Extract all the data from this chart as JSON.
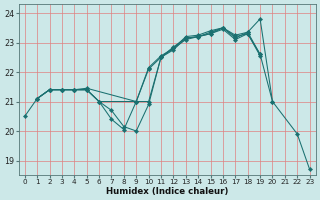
{
  "xlabel": "Humidex (Indice chaleur)",
  "xlim": [
    -0.5,
    23.5
  ],
  "ylim": [
    18.5,
    24.3
  ],
  "yticks": [
    19,
    20,
    21,
    22,
    23,
    24
  ],
  "xticks": [
    0,
    1,
    2,
    3,
    4,
    5,
    6,
    7,
    8,
    9,
    10,
    11,
    12,
    13,
    14,
    15,
    16,
    17,
    18,
    19,
    20,
    21,
    22,
    23
  ],
  "bg_color": "#cce8e8",
  "line_color": "#1a7070",
  "grid_major_color": "#e08080",
  "grid_minor_color": "#f0b0b0",
  "lines": [
    [
      [
        0,
        20.5
      ],
      [
        1,
        21.1
      ],
      [
        2,
        21.4
      ],
      [
        3,
        21.4
      ],
      [
        4,
        21.4
      ],
      [
        5,
        21.4
      ],
      [
        6,
        21.0
      ],
      [
        7,
        20.7
      ],
      [
        8,
        20.15
      ],
      [
        9,
        20.0
      ],
      [
        10,
        20.9
      ],
      [
        11,
        22.5
      ],
      [
        12,
        22.85
      ],
      [
        13,
        23.15
      ],
      [
        14,
        23.2
      ],
      [
        15,
        23.35
      ],
      [
        16,
        23.5
      ],
      [
        17,
        23.25
      ],
      [
        18,
        23.35
      ],
      [
        19,
        23.8
      ],
      [
        20,
        21.0
      ],
      [
        22,
        19.9
      ],
      [
        23,
        18.7
      ]
    ],
    [
      [
        1,
        21.1
      ],
      [
        2,
        21.4
      ],
      [
        3,
        21.4
      ],
      [
        4,
        21.4
      ],
      [
        5,
        21.4
      ],
      [
        6,
        21.0
      ],
      [
        9,
        21.0
      ],
      [
        10,
        22.15
      ],
      [
        11,
        22.55
      ],
      [
        12,
        22.8
      ],
      [
        13,
        23.2
      ],
      [
        14,
        23.25
      ],
      [
        15,
        23.4
      ],
      [
        16,
        23.5
      ],
      [
        17,
        23.15
      ],
      [
        18,
        23.35
      ],
      [
        19,
        22.6
      ],
      [
        20,
        21.0
      ]
    ],
    [
      [
        1,
        21.1
      ],
      [
        2,
        21.4
      ],
      [
        3,
        21.4
      ],
      [
        4,
        21.4
      ],
      [
        5,
        21.45
      ],
      [
        9,
        21.0
      ],
      [
        10,
        22.1
      ],
      [
        11,
        22.5
      ],
      [
        12,
        22.75
      ],
      [
        13,
        23.15
      ],
      [
        14,
        23.2
      ],
      [
        15,
        23.3
      ],
      [
        16,
        23.45
      ],
      [
        17,
        23.1
      ],
      [
        18,
        23.3
      ],
      [
        19,
        22.55
      ]
    ],
    [
      [
        1,
        21.1
      ],
      [
        2,
        21.4
      ],
      [
        3,
        21.4
      ],
      [
        4,
        21.4
      ],
      [
        5,
        21.4
      ],
      [
        6,
        21.0
      ],
      [
        7,
        20.4
      ],
      [
        8,
        20.05
      ],
      [
        9,
        21.0
      ],
      [
        10,
        21.0
      ],
      [
        11,
        22.5
      ],
      [
        12,
        22.8
      ],
      [
        13,
        23.1
      ],
      [
        14,
        23.2
      ],
      [
        15,
        23.3
      ],
      [
        16,
        23.5
      ],
      [
        17,
        23.2
      ],
      [
        18,
        23.3
      ],
      [
        19,
        22.6
      ]
    ]
  ]
}
